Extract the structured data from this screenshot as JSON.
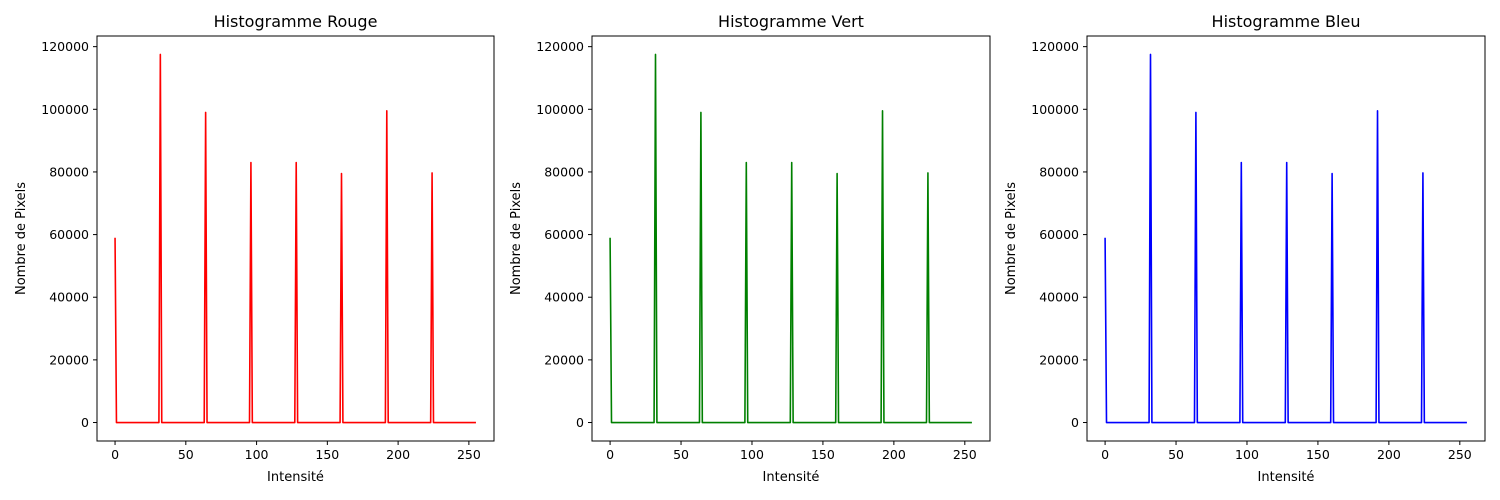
{
  "chart_data": [
    {
      "type": "line",
      "title": "Histogramme Rouge",
      "xlabel": "Intensité",
      "ylabel": "Nombre de Pixels",
      "color": "#ff0000",
      "xlim": [
        -12.75,
        267.75
      ],
      "ylim": [
        -5900,
        123400
      ],
      "xticks": [
        0,
        50,
        100,
        150,
        200,
        250
      ],
      "yticks": [
        0,
        20000,
        40000,
        60000,
        80000,
        100000,
        120000
      ],
      "grid": false,
      "series": [
        {
          "x": [
            0,
            1,
            31,
            32,
            33,
            63,
            64,
            65,
            95,
            96,
            97,
            127,
            128,
            129,
            159,
            160,
            161,
            191,
            192,
            193,
            223,
            224,
            225,
            255
          ],
          "values": [
            59000,
            0,
            0,
            117500,
            0,
            0,
            99000,
            0,
            0,
            83000,
            0,
            0,
            83000,
            0,
            0,
            79500,
            0,
            0,
            99500,
            0,
            0,
            79700,
            0,
            0
          ]
        }
      ]
    },
    {
      "type": "line",
      "title": "Histogramme Vert",
      "xlabel": "Intensité",
      "ylabel": "Nombre de Pixels",
      "color": "#008000",
      "xlim": [
        -12.75,
        267.75
      ],
      "ylim": [
        -5900,
        123400
      ],
      "xticks": [
        0,
        50,
        100,
        150,
        200,
        250
      ],
      "yticks": [
        0,
        20000,
        40000,
        60000,
        80000,
        100000,
        120000
      ],
      "grid": false,
      "series": [
        {
          "x": [
            0,
            1,
            31,
            32,
            33,
            63,
            64,
            65,
            95,
            96,
            97,
            127,
            128,
            129,
            159,
            160,
            161,
            191,
            192,
            193,
            223,
            224,
            225,
            255
          ],
          "values": [
            59000,
            0,
            0,
            117500,
            0,
            0,
            99000,
            0,
            0,
            83000,
            0,
            0,
            83000,
            0,
            0,
            79500,
            0,
            0,
            99500,
            0,
            0,
            79700,
            0,
            0
          ]
        }
      ]
    },
    {
      "type": "line",
      "title": "Histogramme Bleu",
      "xlabel": "Intensité",
      "ylabel": "Nombre de Pixels",
      "color": "#0000ff",
      "xlim": [
        -12.75,
        267.75
      ],
      "ylim": [
        -5900,
        123400
      ],
      "xticks": [
        0,
        50,
        100,
        150,
        200,
        250
      ],
      "yticks": [
        0,
        20000,
        40000,
        60000,
        80000,
        100000,
        120000
      ],
      "grid": false,
      "series": [
        {
          "x": [
            0,
            1,
            31,
            32,
            33,
            63,
            64,
            65,
            95,
            96,
            97,
            127,
            128,
            129,
            159,
            160,
            161,
            191,
            192,
            193,
            223,
            224,
            225,
            255
          ],
          "values": [
            59000,
            0,
            0,
            117500,
            0,
            0,
            99000,
            0,
            0,
            83000,
            0,
            0,
            83000,
            0,
            0,
            79500,
            0,
            0,
            99500,
            0,
            0,
            79700,
            0,
            0
          ]
        }
      ]
    }
  ]
}
